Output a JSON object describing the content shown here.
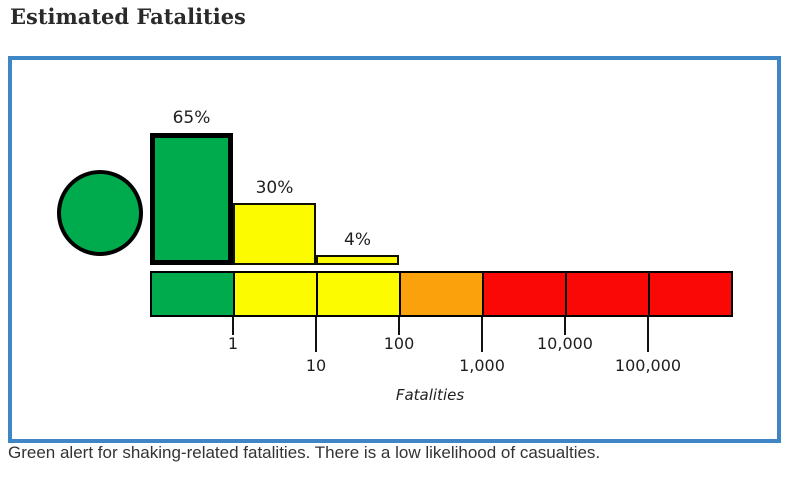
{
  "header": {
    "title": "Estimated Fatalities"
  },
  "caption": {
    "text": "Green alert for shaking-related fatalities. There is a low likelihood of casualties."
  },
  "alert": {
    "level": "green"
  },
  "colors": {
    "green": "#00ab4e",
    "yellow": "#fdfb00",
    "orange": "#fba10c",
    "red": "#f90805",
    "card_border": "#3e86c6",
    "tick": "#111111"
  },
  "chart_data": {
    "type": "bar",
    "title": "Estimated Fatalities",
    "xlabel": "Fatalities",
    "x_scale": "log",
    "x_ticks": [
      1,
      10,
      100,
      1000,
      10000,
      100000
    ],
    "legend": "none",
    "grid": false,
    "bars": [
      {
        "bin": "0.1-1",
        "from": 0.1,
        "to": 1,
        "value": 65,
        "label": "65%",
        "color": "green",
        "emphasis": true
      },
      {
        "bin": "1-10",
        "from": 1,
        "to": 10,
        "value": 30,
        "label": "30%",
        "color": "yellow",
        "emphasis": false
      },
      {
        "bin": "10-100",
        "from": 10,
        "to": 100,
        "value": 4,
        "label": "4%",
        "color": "yellow",
        "emphasis": false
      }
    ],
    "scale_segments": [
      {
        "from": 0.1,
        "to": 1,
        "color": "green"
      },
      {
        "from": 1,
        "to": 10,
        "color": "yellow"
      },
      {
        "from": 10,
        "to": 100,
        "color": "yellow"
      },
      {
        "from": 100,
        "to": 1000,
        "color": "orange"
      },
      {
        "from": 1000,
        "to": 10000,
        "color": "red"
      },
      {
        "from": 10000,
        "to": 100000,
        "color": "red"
      },
      {
        "from": 100000,
        "to": 1000000,
        "color": "red"
      }
    ],
    "ticks": [
      {
        "label": "1",
        "value": 1,
        "row": "upper"
      },
      {
        "label": "10",
        "value": 10,
        "row": "lower"
      },
      {
        "label": "100",
        "value": 100,
        "row": "upper"
      },
      {
        "label": "1,000",
        "value": 1000,
        "row": "lower"
      },
      {
        "label": "10,000",
        "value": 10000,
        "row": "upper"
      },
      {
        "label": "100,000",
        "value": 100000,
        "row": "lower"
      }
    ]
  }
}
